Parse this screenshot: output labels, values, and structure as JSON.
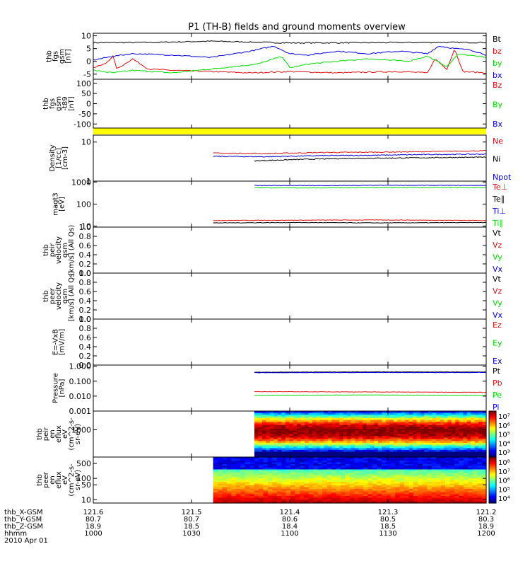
{
  "title": "P1 (TH-B) fields and ground moments overview",
  "chart_data": [
    {
      "type": "line",
      "ylabel_lines": [
        "thb",
        "fgs",
        "gsm",
        "[nT]"
      ],
      "ylim": [
        -7,
        11
      ],
      "yticks": [
        10,
        5,
        0,
        -5
      ],
      "yticklabels": [
        "10",
        "5",
        "0",
        "-5"
      ],
      "series": [
        {
          "name": "Bt",
          "color": "#000000",
          "start": 0,
          "end": 1,
          "points": [
            [
              0,
              7.3
            ],
            [
              0.15,
              7.4
            ],
            [
              0.3,
              7.9
            ],
            [
              0.5,
              7.2
            ],
            [
              0.7,
              7.3
            ],
            [
              0.85,
              7.4
            ],
            [
              1,
              7.4
            ]
          ]
        },
        {
          "name": "bz",
          "color": "#e01010",
          "start": 0,
          "end": 1,
          "points": [
            [
              0,
              -2.5
            ],
            [
              0.03,
              -1
            ],
            [
              0.05,
              2
            ],
            [
              0.06,
              -3
            ],
            [
              0.1,
              1
            ],
            [
              0.14,
              -3
            ],
            [
              0.2,
              -3.5
            ],
            [
              0.3,
              -4
            ],
            [
              0.4,
              -4.5
            ],
            [
              0.5,
              -4
            ],
            [
              0.62,
              -4.5
            ],
            [
              0.7,
              -4.2
            ],
            [
              0.78,
              -4
            ],
            [
              0.85,
              -4.5
            ],
            [
              0.87,
              1
            ],
            [
              0.9,
              -3
            ],
            [
              0.92,
              5
            ],
            [
              0.94,
              -4
            ],
            [
              1,
              -4.5
            ]
          ]
        },
        {
          "name": "by",
          "color": "#00dd00",
          "start": 0,
          "end": 1,
          "points": [
            [
              0,
              -3.5
            ],
            [
              0.05,
              -4.5
            ],
            [
              0.1,
              -3.5
            ],
            [
              0.2,
              -4.5
            ],
            [
              0.3,
              -3
            ],
            [
              0.42,
              -1
            ],
            [
              0.48,
              2
            ],
            [
              0.5,
              -2.5
            ],
            [
              0.55,
              -1
            ],
            [
              0.62,
              0
            ],
            [
              0.7,
              1
            ],
            [
              0.8,
              0
            ],
            [
              0.85,
              2
            ],
            [
              0.9,
              -2
            ],
            [
              0.93,
              3
            ],
            [
              1,
              1.5
            ]
          ]
        },
        {
          "name": "bx",
          "color": "#0000dd",
          "start": 0,
          "end": 1,
          "points": [
            [
              0,
              0.5
            ],
            [
              0.05,
              2
            ],
            [
              0.1,
              3
            ],
            [
              0.2,
              2.5
            ],
            [
              0.3,
              1.5
            ],
            [
              0.4,
              4
            ],
            [
              0.46,
              6
            ],
            [
              0.5,
              3
            ],
            [
              0.55,
              2.5
            ],
            [
              0.62,
              4
            ],
            [
              0.7,
              3
            ],
            [
              0.78,
              4
            ],
            [
              0.85,
              3
            ],
            [
              0.88,
              6
            ],
            [
              0.92,
              5
            ],
            [
              0.96,
              4.5
            ],
            [
              1,
              2.5
            ]
          ]
        }
      ],
      "legend": [
        {
          "label": "Bt",
          "color": "#000000"
        },
        {
          "label": "bz",
          "color": "#e01010"
        },
        {
          "label": "by",
          "color": "#00dd00"
        },
        {
          "label": "bx",
          "color": "#0000dd"
        }
      ]
    },
    {
      "type": "line",
      "ylabel_lines": [
        "thb",
        "fgs",
        "gsm",
        "-t89",
        "[nT]"
      ],
      "ylim": [
        -120,
        120
      ],
      "yticks": [
        100,
        50,
        0,
        -50,
        -100
      ],
      "yticklabels": [
        "100",
        "50",
        "0",
        "-50",
        "-100"
      ],
      "series": [],
      "legend": [
        {
          "label": "Bz",
          "color": "#e01010"
        },
        {
          "label": "By",
          "color": "#00dd00"
        },
        {
          "label": "Bx",
          "color": "#0000dd"
        }
      ]
    },
    {
      "type": "line",
      "ylabel_lines": [
        "Density",
        "[1/cc]",
        "[cm-3]"
      ],
      "yscale": "log",
      "ylim": [
        1,
        15
      ],
      "yticks": [
        10,
        1
      ],
      "yticklabels": [
        "10",
        "1"
      ],
      "series": [
        {
          "name": "Ne",
          "color": "#e01010",
          "start": 0.305,
          "end": 1,
          "points": [
            [
              0,
              5.2
            ],
            [
              0.2,
              5.1
            ],
            [
              0.4,
              5.4
            ],
            [
              0.6,
              5.5
            ],
            [
              0.8,
              5.7
            ],
            [
              1,
              6
            ]
          ]
        },
        {
          "name": "Npot",
          "color": "#0000dd",
          "start": 0.305,
          "end": 1,
          "points": [
            [
              0,
              4.3
            ],
            [
              0.2,
              4.2
            ],
            [
              0.4,
              4.5
            ],
            [
              0.6,
              4.6
            ],
            [
              0.8,
              4.8
            ],
            [
              1,
              4.9
            ]
          ]
        },
        {
          "name": "Ni",
          "color": "#000000",
          "start": 0.41,
          "end": 1,
          "points": [
            [
              0,
              3.3
            ],
            [
              0.2,
              3.6
            ],
            [
              0.4,
              3.8
            ],
            [
              0.6,
              3.9
            ],
            [
              0.8,
              4
            ],
            [
              1,
              4.1
            ]
          ]
        }
      ],
      "legend": [
        {
          "label": "Ne",
          "color": "#e01010"
        },
        {
          "label": "Ni",
          "color": "#000000"
        },
        {
          "label": "Npot",
          "color": "#0000dd"
        }
      ]
    },
    {
      "type": "line",
      "ylabel_lines": [
        "magt3",
        "[eV]"
      ],
      "yscale": "log",
      "ylim": [
        9,
        1100
      ],
      "yticks": [
        1000,
        100,
        10
      ],
      "yticklabels": [
        "1000",
        "100",
        "10"
      ],
      "series": [
        {
          "name": "Ti⊥",
          "color": "#0000dd",
          "start": 0.41,
          "end": 1,
          "points": [
            [
              0,
              700
            ],
            [
              0.3,
              690
            ],
            [
              0.6,
              710
            ],
            [
              1,
              700
            ]
          ]
        },
        {
          "name": "Ti∥",
          "color": "#00dd00",
          "start": 0.41,
          "end": 1,
          "points": [
            [
              0,
              550
            ],
            [
              0.3,
              540
            ],
            [
              0.6,
              560
            ],
            [
              1,
              555
            ]
          ]
        },
        {
          "name": "Te⊥",
          "color": "#e01010",
          "start": 0.305,
          "end": 1,
          "points": [
            [
              0,
              18
            ],
            [
              0.3,
              18.5
            ],
            [
              0.6,
              19
            ],
            [
              1,
              18
            ]
          ]
        },
        {
          "name": "Te∥",
          "color": "#000000",
          "start": 0.305,
          "end": 1,
          "points": [
            [
              0,
              14
            ],
            [
              0.3,
              14.5
            ],
            [
              0.6,
              14
            ],
            [
              1,
              14.5
            ]
          ]
        }
      ],
      "legend": [
        {
          "label": "Te⊥",
          "color": "#e01010"
        },
        {
          "label": "Te∥",
          "color": "#000000"
        },
        {
          "label": "Ti⊥",
          "color": "#0000dd"
        },
        {
          "label": "Ti∥",
          "color": "#00dd00"
        }
      ]
    },
    {
      "type": "line",
      "ylabel_lines": [
        "thb",
        "peir",
        "velocity",
        "gsm",
        "[km/s] (All Qs)"
      ],
      "ylim": [
        0,
        1
      ],
      "yticks": [
        1,
        0.8,
        0.6,
        0.4,
        0.2,
        0
      ],
      "yticklabels": [
        "1.0",
        "0.8",
        "0.6",
        "0.4",
        "0.2",
        "0.0"
      ],
      "series": [],
      "legend": [
        {
          "label": "Vt",
          "color": "#000000"
        },
        {
          "label": "Vz",
          "color": "#e01010"
        },
        {
          "label": "Vy",
          "color": "#00dd00"
        },
        {
          "label": "Vx",
          "color": "#0000dd"
        }
      ]
    },
    {
      "type": "line",
      "ylabel_lines": [
        "thb",
        "peer",
        "velocity",
        "gsm",
        "[km/s] (All Qs)"
      ],
      "ylim": [
        0,
        1
      ],
      "yticks": [
        1,
        0.8,
        0.6,
        0.4,
        0.2,
        0
      ],
      "yticklabels": [
        "1.0",
        "0.8",
        "0.6",
        "0.4",
        "0.2",
        "0.0"
      ],
      "series": [],
      "legend": [
        {
          "label": "Vt",
          "color": "#000000"
        },
        {
          "label": "Vz",
          "color": "#e01010"
        },
        {
          "label": "Vy",
          "color": "#00dd00"
        },
        {
          "label": "Vx",
          "color": "#0000dd"
        }
      ]
    },
    {
      "type": "line",
      "ylabel_lines": [
        "E=-VxB",
        "[mV/m]"
      ],
      "ylim": [
        0,
        1
      ],
      "yticks": [
        1,
        0.8,
        0.6,
        0.4,
        0.2,
        0
      ],
      "yticklabels": [
        "1.0",
        "0.8",
        "0.6",
        "0.4",
        "0.2",
        "0.0"
      ],
      "series": [],
      "legend": [
        {
          "label": "Ez",
          "color": "#e01010"
        },
        {
          "label": "Ey",
          "color": "#00dd00"
        },
        {
          "label": "Ex",
          "color": "#0000dd"
        }
      ]
    },
    {
      "type": "line",
      "ylabel_lines": [
        "Pressure",
        "[nPa]"
      ],
      "yscale": "log",
      "ylim": [
        0.001,
        1.2
      ],
      "yticks": [
        1,
        0.1,
        0.01,
        0.001
      ],
      "yticklabels": [
        "1.000",
        "0.100",
        "0.010",
        "0.001"
      ],
      "series": [
        {
          "name": "Pt",
          "color": "#000000",
          "start": 0.41,
          "end": 1,
          "points": [
            [
              0,
              0.4
            ],
            [
              0.5,
              0.42
            ],
            [
              1,
              0.41
            ]
          ]
        },
        {
          "name": "Pi",
          "color": "#0000dd",
          "start": 0.41,
          "end": 1,
          "points": [
            [
              0,
              0.37
            ],
            [
              0.5,
              0.38
            ],
            [
              1,
              0.38
            ]
          ]
        },
        {
          "name": "Pb",
          "color": "#e01010",
          "start": 0.41,
          "end": 1,
          "points": [
            [
              0,
              0.02
            ],
            [
              0.5,
              0.019
            ],
            [
              1,
              0.018
            ]
          ]
        },
        {
          "name": "Pe",
          "color": "#00dd00",
          "start": 0.41,
          "end": 1,
          "points": [
            [
              0,
              0.011
            ],
            [
              0.5,
              0.012
            ],
            [
              1,
              0.011
            ]
          ]
        }
      ],
      "legend": [
        {
          "label": "Pt",
          "color": "#000000"
        },
        {
          "label": "Pb",
          "color": "#e01010"
        },
        {
          "label": "Pe",
          "color": "#00dd00"
        },
        {
          "label": "Pi",
          "color": "#0000dd"
        }
      ]
    },
    {
      "type": "heatmap",
      "ylabel_lines": [
        "thb",
        "peir",
        "en",
        "eflux",
        "eV",
        "(cm^2-s-",
        "sr-eV)"
      ],
      "yscale": "log",
      "ylim": [
        7,
        30000
      ],
      "yticks": [
        1000
      ],
      "yticklabels": [
        "1000"
      ],
      "x_start": 0.41,
      "colorbar": {
        "min_exp": 3.5,
        "max_exp": 7.2,
        "labels": [
          "10⁷",
          "10⁶",
          "10⁵",
          "10⁴",
          "10³"
        ]
      }
    },
    {
      "type": "heatmap",
      "ylabel_lines": [
        "thb",
        "peer",
        "en",
        "eflux",
        "eV",
        "(cm^2-s-",
        "sr-eV)"
      ],
      "yscale": "log",
      "ylim": [
        7,
        1000
      ],
      "yticks": [
        500,
        100,
        50,
        10
      ],
      "yticklabels": [
        "500",
        "100",
        "50",
        "10"
      ],
      "x_start": 0.305,
      "colorbar": {
        "min_exp": 3.5,
        "max_exp": 8.2,
        "labels": [
          "10⁸",
          "10⁷",
          "10⁶",
          "10⁵",
          "10⁴"
        ]
      }
    }
  ],
  "xaxis": {
    "row_labels": [
      "thb_X-GSM",
      "thb_Y-GSM",
      "thb_Z-GSM",
      "hhmm",
      "2010 Apr 01"
    ],
    "columns": [
      {
        "x": 0,
        "values": [
          "121.6",
          "80.7",
          "18.9",
          "1000"
        ]
      },
      {
        "x": 0.25,
        "values": [
          "121.5",
          "80.7",
          "18.5",
          "1030"
        ]
      },
      {
        "x": 0.5,
        "values": [
          "121.4",
          "80.6",
          "18.4",
          "1100"
        ]
      },
      {
        "x": 0.75,
        "values": [
          "121.3",
          "80.5",
          "18.5",
          "1130"
        ]
      },
      {
        "x": 1,
        "values": [
          "121.2",
          "80.3",
          "18.9",
          "1200"
        ]
      }
    ]
  },
  "status_bar_color": "#ffff00"
}
